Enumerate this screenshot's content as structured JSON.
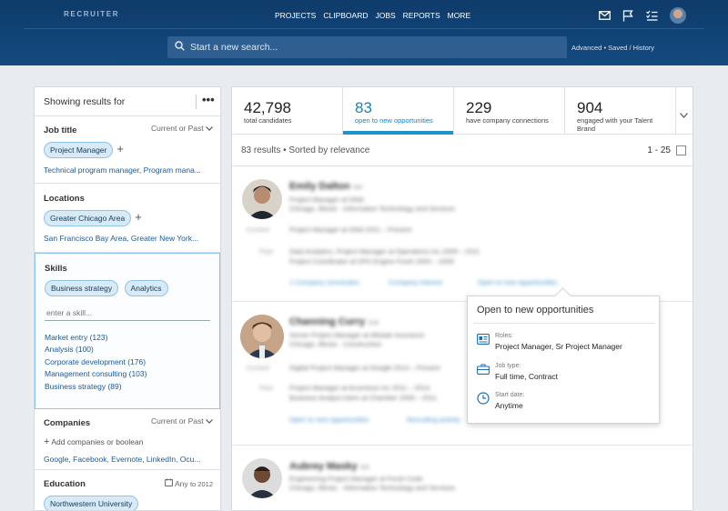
{
  "header": {
    "brand": "RECRUITER",
    "nav": [
      "PROJECTS",
      "CLIPBOARD",
      "JOBS",
      "REPORTS",
      "MORE"
    ],
    "search_placeholder": "Start a new search...",
    "advanced": "Advanced • Saved / History"
  },
  "filters": {
    "title": "Showing results for",
    "job_title": {
      "label": "Job title",
      "scope": "Current or Past",
      "selected": "Project Manager",
      "suggestions": "Technical program manager, Program mana..."
    },
    "locations": {
      "label": "Locations",
      "selected": "Greater Chicago Area",
      "suggestions": "San Francisco Bay Area, Greater New York..."
    },
    "skills": {
      "label": "Skills",
      "selected": [
        "Business strategy",
        "Analytics"
      ],
      "input_placeholder": "enter a skill...",
      "suggestions": [
        "Market entry (123)",
        "Analysis (100)",
        "Corporate development (176)",
        "Management consulting (103)",
        "Business strategy (89)"
      ]
    },
    "companies": {
      "label": "Companies",
      "scope": "Current or Past",
      "add_label": "Add companies or boolean",
      "suggestions": "Google, Facebook, Evernote, LinkedIn, Ocu..."
    },
    "education": {
      "label": "Education",
      "range_from": "Any",
      "range_to": "to 2012",
      "selected": "Northwestern University"
    }
  },
  "stats": [
    {
      "num": "42,798",
      "label": "total candidates"
    },
    {
      "num": "83",
      "label": "open to new opportunities"
    },
    {
      "num": "229",
      "label": "have company connections"
    },
    {
      "num": "904",
      "label": "engaged with your Talent Brand"
    }
  ],
  "results": {
    "summary": "83 results • Sorted by relevance",
    "range": "1 - 25"
  },
  "candidates": [
    {
      "name": "Emily Dalton",
      "degree": "3rd",
      "headline": "Project Manager at Orbit",
      "location": "Chicago, Illinois · Information Technology and Services",
      "current_label": "Current",
      "current": "Project Manager at Orbit  2011 – Present",
      "past_label": "Past",
      "past1": "Data Analytics, Project Manager at Operations Inc  2009 – 2011",
      "past2": "Project Coordinator at DFS Engine Fresh  2005 – 2009",
      "actions": [
        "1 Company connection",
        "Company interest",
        "Open to new opportunities"
      ]
    },
    {
      "name": "Channing Curry",
      "degree": "2nd",
      "headline": "Senior Project Manager at Allstate Insurance",
      "location": "Chicago, Illinois · Construction",
      "current_label": "Current",
      "current": "Digital Project Manager at Google  2014 – Present",
      "past_label": "Past",
      "past1": "Project Manager at Accenture Inc  2011 – 2014",
      "past2": "Business Analyst intern at Chamber  2009 – 2011",
      "actions": [
        "Open to new opportunities",
        "Recruiting activity"
      ]
    },
    {
      "name": "Aubrey Masky",
      "degree": "3rd",
      "headline": "Engineering Project Manager at Fresh Code",
      "location": "Chicago, Illinois · Information Technology and Services"
    }
  ],
  "popover": {
    "title": "Open to new opportunities",
    "roles_label": "Roles:",
    "roles": "Project Manager, Sr Project Manager",
    "job_type_label": "Job type:",
    "job_type": "Full time, Contract",
    "start_label": "Start date:",
    "start": "Anytime"
  }
}
